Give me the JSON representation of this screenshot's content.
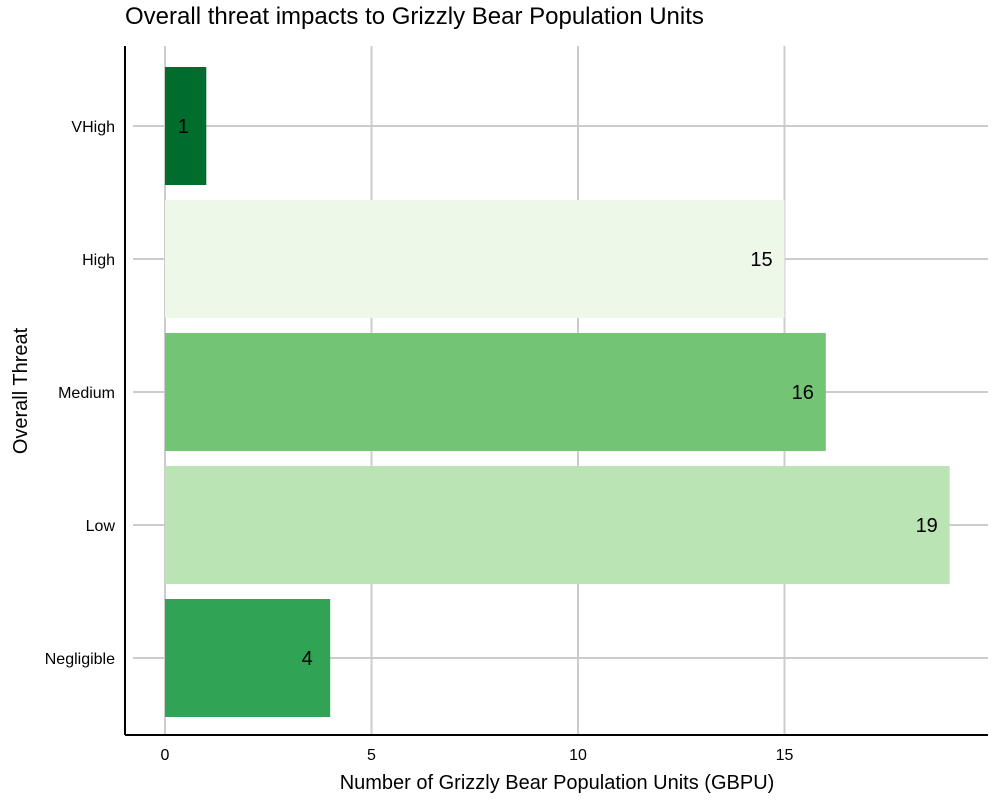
{
  "chart_data": {
    "type": "bar",
    "orientation": "horizontal",
    "title": "Overall threat impacts to Grizzly Bear Population Units",
    "xlabel": "Number of Grizzly Bear Population Units (GBPU)",
    "ylabel": "Overall Threat",
    "categories": [
      "VHigh",
      "High",
      "Medium",
      "Low",
      "Negligible"
    ],
    "values": [
      1,
      15,
      16,
      19,
      4
    ],
    "data_labels": [
      "1",
      "15",
      "16",
      "19",
      "4"
    ],
    "bar_colors": [
      "#006d2c",
      "#edf8e9",
      "#74c476",
      "#bae4b3",
      "#31a354"
    ],
    "xlim": [
      0,
      20
    ],
    "xticks": [
      0,
      5,
      10,
      15
    ],
    "xtick_labels": [
      "0",
      "5",
      "10",
      "15"
    ],
    "grid": true,
    "legend": "none"
  }
}
